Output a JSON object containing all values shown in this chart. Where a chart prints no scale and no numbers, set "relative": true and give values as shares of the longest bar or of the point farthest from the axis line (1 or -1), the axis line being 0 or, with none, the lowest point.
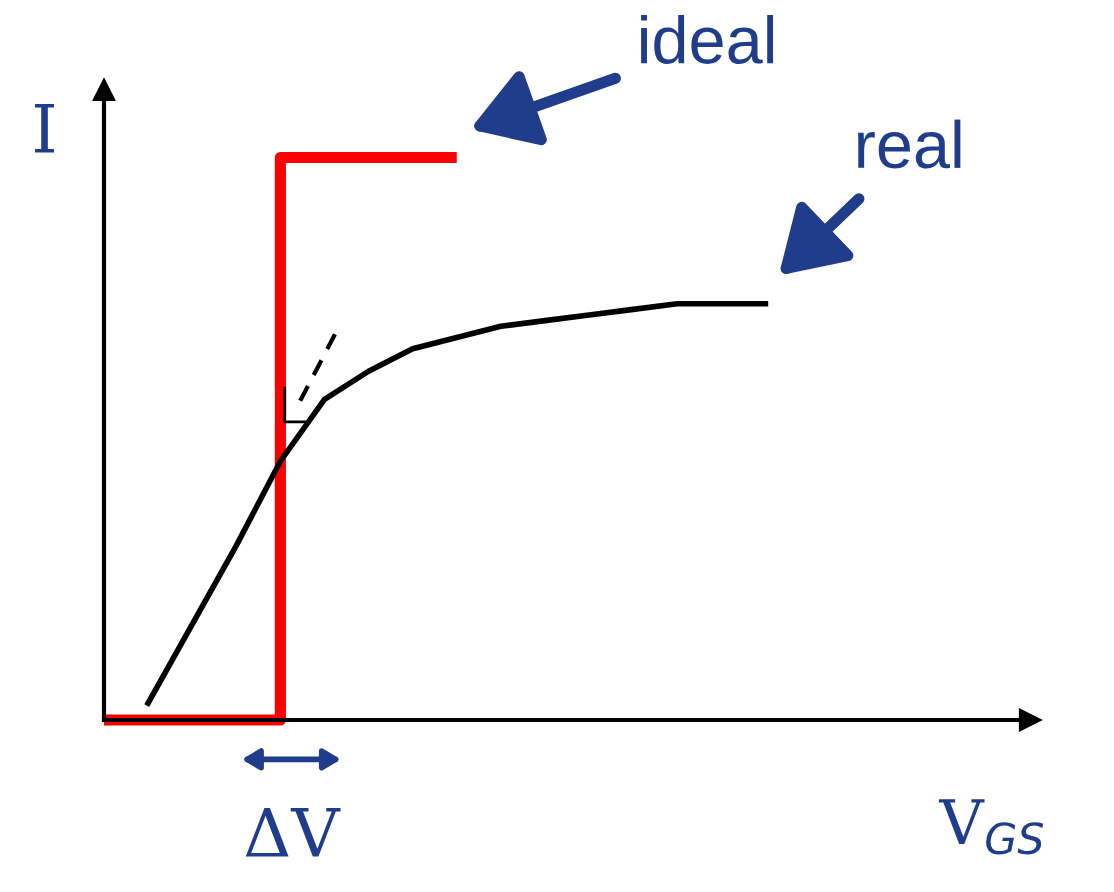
{
  "chart_data": {
    "type": "line",
    "relative": true,
    "xlabel": "V$_{GS}$",
    "ylabel": "I",
    "categories": [
      null,
      null,
      null,
      null,
      null,
      null,
      null,
      null,
      null,
      null,
      null,
      null,
      null,
      null,
      null,
      null,
      null,
      null,
      null,
      null,
      null,
      null
    ],
    "series": [
      {
        "name": "ideal",
        "type": "step",
        "color": "#ff0000",
        "values": [
          0,
          0,
          0,
          0,
          1,
          1,
          1,
          1,
          1,
          null,
          null,
          null,
          null,
          null,
          null,
          null,
          null,
          null,
          null,
          null,
          null,
          null
        ]
      },
      {
        "name": "real",
        "color": "#000000",
        "values": [
          null,
          0.03,
          0.17,
          0.31,
          0.46,
          0.57,
          0.62,
          0.66,
          0.68,
          0.7,
          0.71,
          0.72,
          0.73,
          0.74,
          0.74,
          0.74,
          null,
          null,
          null,
          null,
          null,
          null
        ]
      }
    ],
    "annotations": [
      "ΔV"
    ]
  }
}
